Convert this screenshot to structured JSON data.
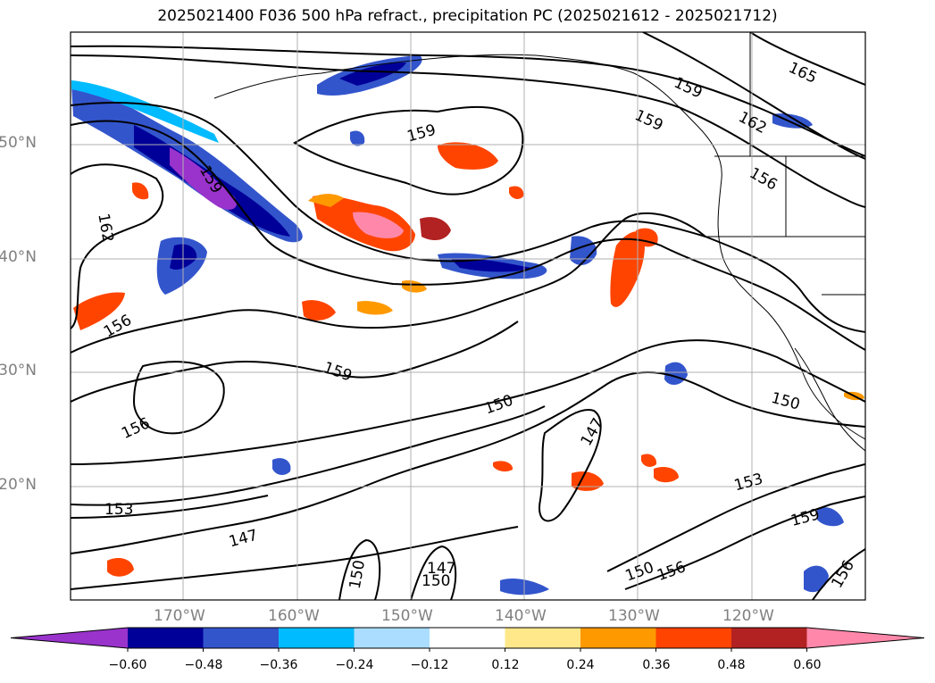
{
  "title": "2025021400 F036 500 hPa refract., precipitation PC (2025021612 - 2025021712)",
  "lat_labels": [
    "50°N",
    "40°N",
    "30°N",
    "20°N"
  ],
  "lon_labels": [
    "170°W",
    "160°W",
    "150°W",
    "140°W",
    "130°W",
    "120°W"
  ],
  "contour_labels": [
    "165",
    "159",
    "159",
    "162",
    "156",
    "159",
    "162",
    "156",
    "159",
    "159",
    "156",
    "150",
    "147",
    "150",
    "153",
    "147",
    "150",
    "147",
    "150",
    "150",
    "156",
    "153",
    "159",
    "156"
  ],
  "colorbar": {
    "ticks": [
      "−0.60",
      "−0.48",
      "−0.36",
      "−0.24",
      "−0.12",
      "0.12",
      "0.24",
      "0.36",
      "0.48",
      "0.60"
    ],
    "colors": [
      "#9933cc",
      "#000099",
      "#3355cc",
      "#00bbff",
      "#aaddff",
      "#ffffff",
      "#ffe88a",
      "#ff9900",
      "#ff4400",
      "#b22222",
      "#ff88aa"
    ]
  }
}
